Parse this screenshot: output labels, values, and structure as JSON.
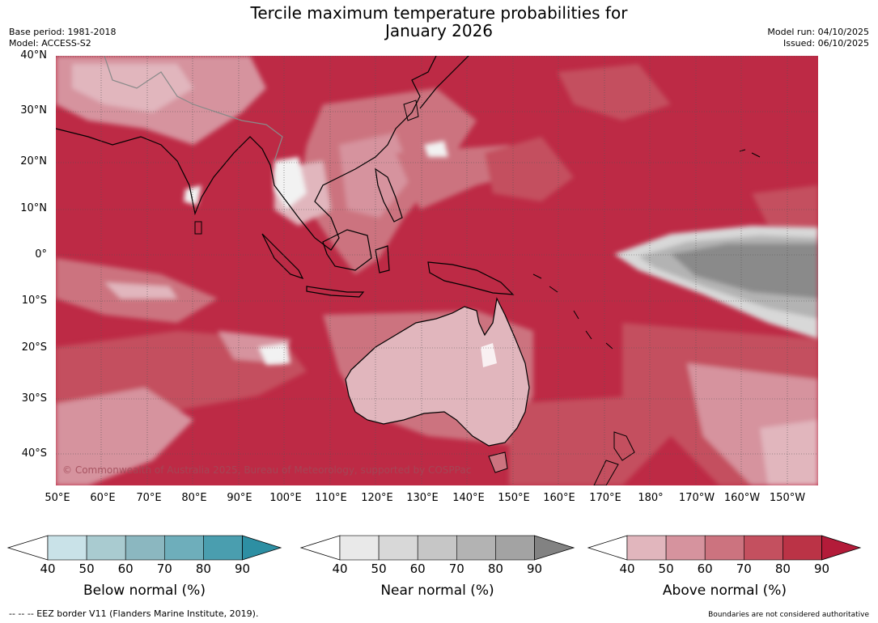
{
  "header": {
    "title_line1": "Tercile maximum temperature probabilities for",
    "title_line2": "January 2026",
    "base_period": "Base period: 1981-2018",
    "model": "Model: ACCESS-S2",
    "model_run": "Model run: 04/10/2025",
    "issued": "Issued: 06/10/2025"
  },
  "map": {
    "lat_labels": [
      "40°N",
      "30°N",
      "20°N",
      "10°N",
      "0°",
      "10°S",
      "20°S",
      "30°S",
      "40°S"
    ],
    "lon_labels": [
      "50°E",
      "60°E",
      "70°E",
      "80°E",
      "90°E",
      "100°E",
      "110°E",
      "120°E",
      "130°E",
      "140°E",
      "150°E",
      "160°E",
      "170°E",
      "180°",
      "170°W",
      "160°W",
      "150°W"
    ],
    "copyright": "© Commonwealth of Australia 2025, Bureau of Meteorology, supported by COSPPac"
  },
  "colorbars": [
    {
      "title": "Below normal (%)",
      "ticks": [
        "40",
        "50",
        "60",
        "70",
        "80",
        "90"
      ],
      "colors": [
        "#c9e2e8",
        "#a9cbd0",
        "#8bb7c0",
        "#6eaebb",
        "#4a9eaf"
      ],
      "extend_color": "#2d8fa3"
    },
    {
      "title": "Near normal (%)",
      "ticks": [
        "40",
        "50",
        "60",
        "70",
        "80",
        "90"
      ],
      "colors": [
        "#e9e9e9",
        "#d8d8d8",
        "#c6c6c6",
        "#b3b3b3",
        "#a3a3a3"
      ],
      "extend_color": "#828282"
    },
    {
      "title": "Above normal (%)",
      "ticks": [
        "40",
        "50",
        "60",
        "70",
        "80",
        "90"
      ],
      "colors": [
        "#e1b6bd",
        "#d6939e",
        "#cc737f",
        "#c4505f",
        "#bb3346"
      ],
      "extend_color": "#b31b39"
    }
  ],
  "footer": {
    "eez_note": "--  --  -- EEZ border V11 (Flanders Marine Institute, 2019).",
    "boundary_note": "Boundaries are not considered authoritative"
  }
}
